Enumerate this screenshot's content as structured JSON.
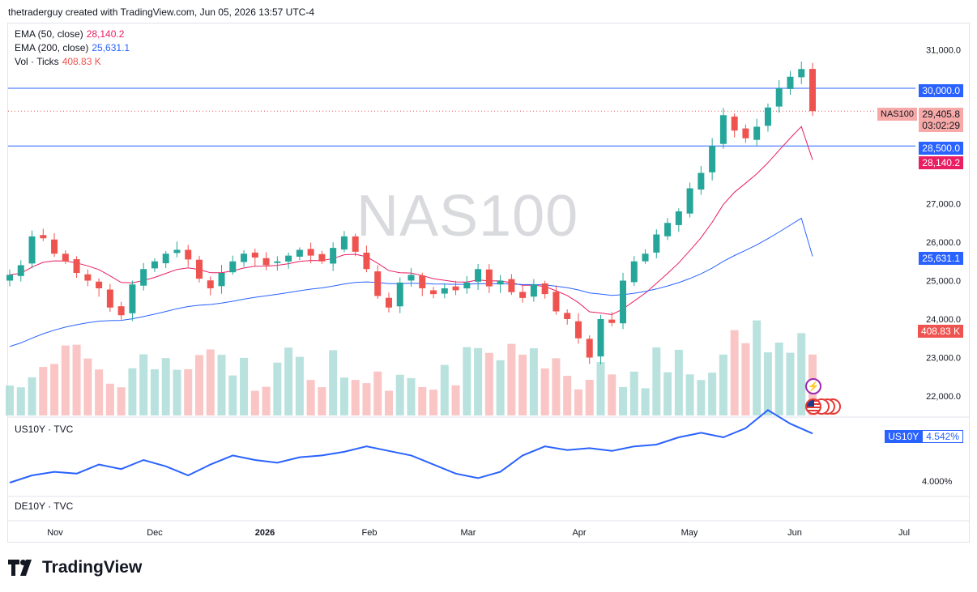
{
  "header": {
    "attribution": "thetraderguy created with TradingView.com, Jun 05, 2026 13:57 UTC-4"
  },
  "legend": {
    "ema50_label": "EMA (50, close)",
    "ema50_value": "28,140.2",
    "ema200_label": "EMA (200, close)",
    "ema200_value": "25,631.1",
    "vol_label": "Vol · Ticks",
    "vol_value": "408.83 K"
  },
  "watermark": "NAS100",
  "price_tags": {
    "level_30000": "30,000.0",
    "symbol": "NAS100",
    "last_price": "29,405.8",
    "countdown": "03:02:29",
    "level_28500": "28,500.0",
    "ema50": "28,140.2",
    "ema200": "25,631.1",
    "volume": "408.83 K"
  },
  "lower_panes": {
    "us10y_label": "US10Y · TVC",
    "us10y_tag_symbol": "US10Y",
    "us10y_tag_value": "4.542%",
    "us10y_axis_tick": "4.000%",
    "de10y_label": "DE10Y · TVC"
  },
  "brand": "TradingView",
  "colors": {
    "up": "#26a69a",
    "down": "#ef5350",
    "ema50": "#e91e63",
    "ema200": "#2962ff",
    "hline": "#2962ff",
    "yield_line": "#2962ff"
  },
  "icons": [
    "lightning-icon",
    "us-flag-icon"
  ],
  "chart_data": [
    {
      "type": "candlestick",
      "symbol": "NAS100",
      "title": "NAS100",
      "x_axis_labels": [
        "Nov",
        "Dec",
        "2026",
        "Feb",
        "Mar",
        "Apr",
        "May",
        "Jun",
        "Jul"
      ],
      "y_axis_labels": [
        "22,000.0",
        "23,000.0",
        "24,000.0",
        "25,000.0",
        "26,000.0",
        "27,000.0",
        "31,000.0"
      ],
      "ylim": [
        21400,
        31600
      ],
      "horizontal_lines": [
        30000,
        28500
      ],
      "last_price": 29405.8,
      "close_series": [
        25150,
        25400,
        26150,
        26100,
        25700,
        25500,
        25200,
        25000,
        24800,
        24300,
        24100,
        24900,
        25300,
        25500,
        25700,
        25800,
        25550,
        25050,
        24800,
        25200,
        25500,
        25700,
        25600,
        25400,
        25500,
        25650,
        25800,
        25650,
        25500,
        25850,
        26150,
        25750,
        25300,
        24600,
        24300,
        24950,
        25150,
        24800,
        24650,
        24800,
        24750,
        24950,
        25300,
        24850,
        25000,
        24700,
        24550,
        24900,
        24650,
        24200,
        24000,
        23500,
        23000,
        24000,
        23900,
        25000,
        25500,
        25700,
        26200,
        26500,
        26800,
        27400,
        27800,
        28500,
        29300,
        28900,
        28700,
        29000,
        29500,
        30000,
        30300,
        30500,
        29405.8
      ],
      "series": [
        {
          "name": "EMA (50, close)",
          "last_value": 28140.2
        },
        {
          "name": "EMA (200, close)",
          "last_value": 25631.1
        }
      ],
      "volume_last": "408.83 K"
    },
    {
      "type": "line",
      "symbol": "US10Y",
      "last_value": 4.542,
      "y_axis_labels": [
        "4.000%"
      ],
      "values": [
        4.0,
        4.08,
        4.12,
        4.1,
        4.2,
        4.15,
        4.25,
        4.18,
        4.08,
        4.2,
        4.3,
        4.25,
        4.22,
        4.28,
        4.3,
        4.34,
        4.4,
        4.35,
        4.3,
        4.2,
        4.1,
        4.05,
        4.12,
        4.3,
        4.4,
        4.36,
        4.38,
        4.35,
        4.4,
        4.42,
        4.5,
        4.55,
        4.5,
        4.6,
        4.8,
        4.65,
        4.542
      ]
    }
  ]
}
